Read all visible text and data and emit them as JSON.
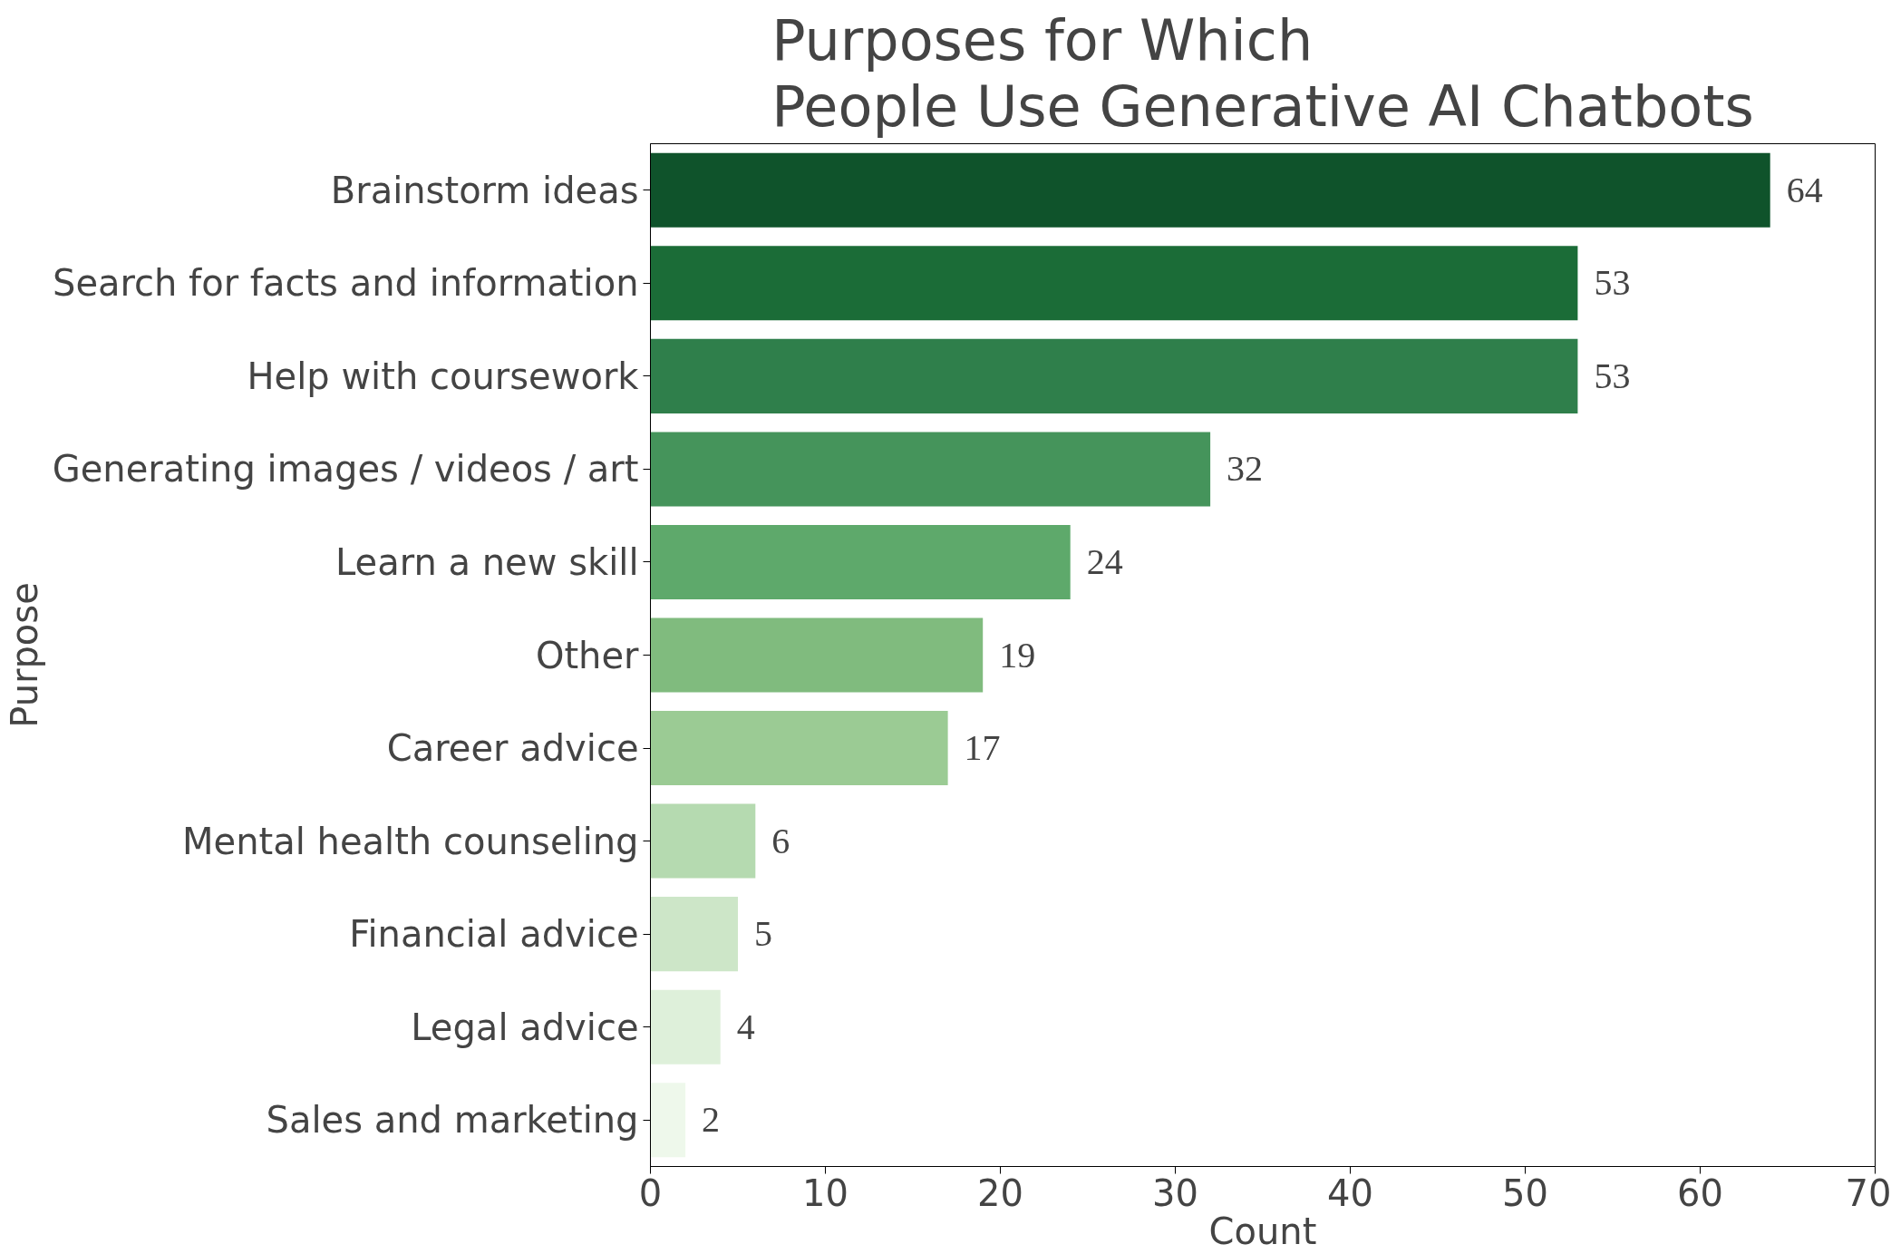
{
  "chart_data": {
    "type": "bar",
    "orientation": "horizontal",
    "title": "Purposes for Which\nPeople Use Generative AI Chatbots",
    "xlabel": "Count",
    "ylabel": "Purpose",
    "categories": [
      "Brainstorm ideas",
      "Search for facts and information",
      "Help with coursework",
      "Generating images / videos / art",
      "Learn a new skill",
      "Other",
      "Career advice",
      "Mental health counseling",
      "Financial advice",
      "Legal advice",
      "Sales and marketing"
    ],
    "values": [
      64,
      53,
      53,
      32,
      24,
      19,
      17,
      6,
      5,
      4,
      2
    ],
    "colors": [
      "#0f532b",
      "#1b6c37",
      "#2f7f4b",
      "#45945b",
      "#5ea96b",
      "#80bb7e",
      "#9bcb94",
      "#b5dab0",
      "#cde6c8",
      "#def0da",
      "#eef8eb"
    ],
    "xlim": [
      0,
      70
    ],
    "xticks": [
      0,
      10,
      20,
      30,
      40,
      50,
      60,
      70
    ],
    "data_labels": true,
    "grid": false
  }
}
